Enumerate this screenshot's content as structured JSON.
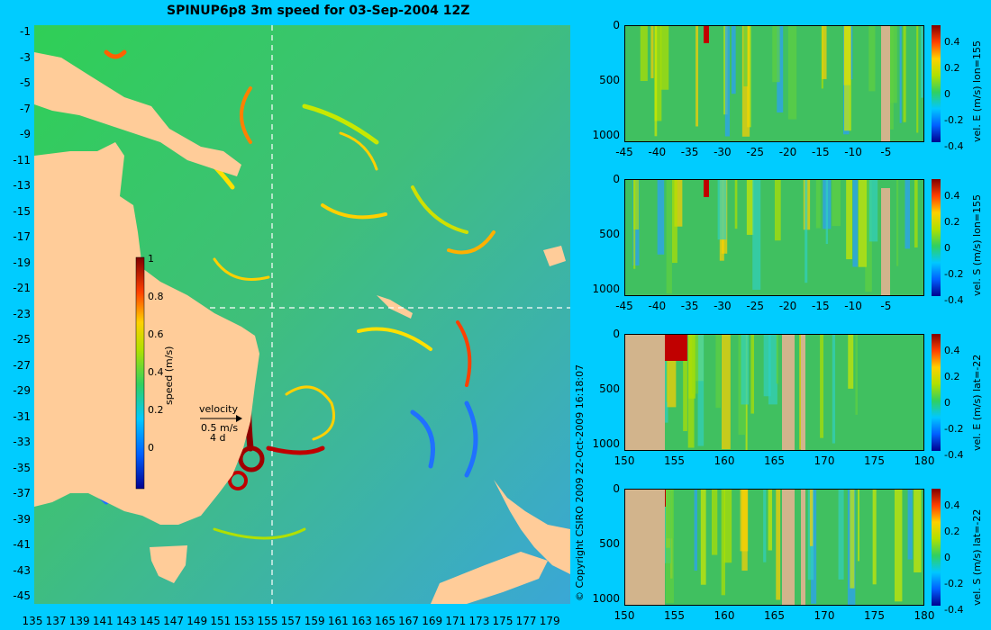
{
  "title": "SPINUP6p8 3m speed for 03-Sep-2004 12Z",
  "copyright": "© Copyright CSIRO 2009   22-Oct-2009 16:18:07",
  "map": {
    "lat_labels": [
      "-1",
      "-3",
      "-5",
      "-7",
      "-9",
      "-11",
      "-13",
      "-15",
      "-17",
      "-19",
      "-21",
      "-23",
      "-25",
      "-27",
      "-29",
      "-31",
      "-33",
      "-35",
      "-37",
      "-39",
      "-41",
      "-43",
      "-45"
    ],
    "lon_labels": [
      "135",
      "137",
      "139",
      "141",
      "143",
      "145",
      "147",
      "149",
      "151",
      "153",
      "155",
      "157",
      "159",
      "161",
      "163",
      "165",
      "167",
      "169",
      "171",
      "173",
      "175",
      "177",
      "179"
    ],
    "colorbar": {
      "ticks": [
        "1",
        "0.8",
        "0.6",
        "0.4",
        "0.2",
        "0"
      ],
      "label": "speed (m/s)"
    },
    "velocity_legend": {
      "title": "velocity",
      "scale": "0.5 m/s",
      "duration": "4 d"
    }
  },
  "panels": [
    {
      "id": "u-lon155",
      "label": "vel. E (m/s) lon=155",
      "x_ticks": [
        "-45",
        "-40",
        "-35",
        "-30",
        "-25",
        "-20",
        "-15",
        "-10",
        "-5"
      ],
      "y_ticks": [
        "0",
        "500",
        "1000"
      ],
      "cb_ticks": [
        "0.4",
        "0.2",
        "0",
        "-0.2",
        "-0.4"
      ]
    },
    {
      "id": "v-lon155",
      "label": "vel. S (m/s) lon=155",
      "x_ticks": [
        "-45",
        "-40",
        "-35",
        "-30",
        "-25",
        "-20",
        "-15",
        "-10",
        "-5"
      ],
      "y_ticks": [
        "0",
        "500",
        "1000"
      ],
      "cb_ticks": [
        "0.4",
        "0.2",
        "0",
        "-0.2",
        "-0.4"
      ]
    },
    {
      "id": "u-lat22",
      "label": "vel. E (m/s) lat=-22",
      "x_ticks": [
        "150",
        "155",
        "160",
        "165",
        "170",
        "175",
        "180"
      ],
      "y_ticks": [
        "0",
        "500",
        "1000"
      ],
      "cb_ticks": [
        "0.4",
        "0.2",
        "0",
        "-0.2",
        "-0.4"
      ]
    },
    {
      "id": "v-lat22",
      "label": "vel. S (m/s) lat=-22",
      "x_ticks": [
        "150",
        "155",
        "160",
        "165",
        "170",
        "175",
        "180"
      ],
      "y_ticks": [
        "0",
        "500",
        "1000"
      ],
      "cb_ticks": [
        "0.4",
        "0.2",
        "0",
        "-0.2",
        "-0.4"
      ]
    }
  ]
}
